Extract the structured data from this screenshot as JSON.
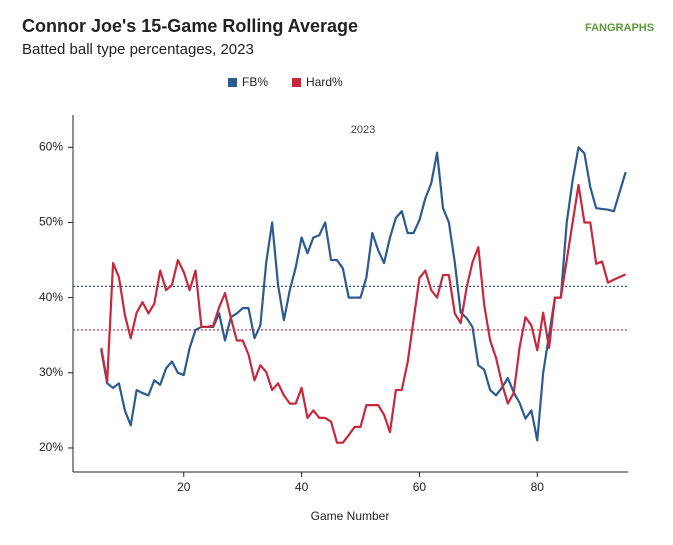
{
  "chart_data": {
    "type": "line",
    "title": "Connor Joe's 15-Game Rolling Average",
    "subtitle": "Batted ball type percentages, 2023",
    "logo": "FANGRAPHS",
    "annotation": "2023",
    "x_label": "Game Number",
    "x": [
      6,
      7,
      8,
      9,
      10,
      11,
      12,
      13,
      14,
      15,
      16,
      17,
      18,
      19,
      20,
      21,
      22,
      23,
      24,
      25,
      26,
      27,
      28,
      29,
      30,
      31,
      32,
      33,
      34,
      35,
      36,
      37,
      38,
      39,
      40,
      41,
      42,
      43,
      44,
      45,
      46,
      47,
      48,
      49,
      50,
      51,
      52,
      53,
      54,
      55,
      56,
      57,
      58,
      59,
      60,
      61,
      62,
      63,
      64,
      65,
      66,
      67,
      68,
      69,
      70,
      71,
      72,
      73,
      74,
      75,
      76,
      77,
      78,
      79,
      80,
      81,
      82,
      83,
      84,
      85,
      86,
      87,
      88,
      89,
      90,
      91,
      92,
      93,
      95
    ],
    "series": [
      {
        "name": "FB%",
        "color": "#2b5b8f",
        "values": [
          33.0,
          28.6,
          28.0,
          28.6,
          25,
          23,
          27.7,
          27.3,
          27,
          29,
          28.4,
          30.6,
          31.5,
          30,
          29.7,
          33.3,
          35.7,
          36.1,
          36.1,
          36.1,
          37.9,
          34.3,
          37.4,
          37.9,
          38.6,
          38.6,
          34.6,
          36.3,
          44.7,
          50,
          41.7,
          37,
          41,
          44,
          48,
          45.9,
          48,
          48.3,
          50,
          45,
          45,
          43.9,
          40,
          40,
          40,
          42.7,
          48.6,
          46.3,
          44.6,
          48,
          50.6,
          51.5,
          48.6,
          48.6,
          50.3,
          53.2,
          55.2,
          59.3,
          51.9,
          50,
          44.7,
          38,
          37.3,
          36.1,
          31,
          30.4,
          27.7,
          27,
          28,
          29.3,
          27.4,
          26,
          23.9,
          25,
          21,
          30,
          35,
          40,
          40,
          50,
          55.6,
          60,
          59.2,
          54.7,
          51.9,
          51.8,
          51.7,
          51.5,
          56.7
        ]
      },
      {
        "name": "Hard%",
        "color": "#c8283c",
        "values": [
          33.3,
          28.8,
          44.6,
          42.7,
          37.7,
          34.6,
          38,
          39.4,
          37.9,
          39.2,
          43.6,
          41,
          41.7,
          45,
          43.4,
          41,
          43.6,
          36.1,
          36.1,
          36.3,
          38.7,
          40.6,
          37.3,
          34.3,
          34.3,
          32.4,
          29,
          31,
          30.1,
          27.7,
          28.6,
          27,
          25.9,
          25.9,
          28,
          24,
          25,
          24,
          24,
          23.5,
          20.7,
          20.7,
          21.7,
          22.8,
          22.8,
          25.7,
          25.7,
          25.7,
          24.4,
          22.1,
          27.7,
          27.7,
          31.4,
          37,
          42.6,
          43.6,
          41,
          40,
          43,
          43,
          37.9,
          36.6,
          41.3,
          44.7,
          46.7,
          39,
          34.3,
          32,
          28.6,
          25.9,
          27.3,
          33.4,
          37.4,
          36.3,
          33,
          38,
          33.3,
          40,
          40,
          45,
          50,
          55,
          50,
          50,
          44.5,
          44.8,
          42,
          42.4,
          43.1
        ]
      }
    ],
    "reference_lines": [
      {
        "value": 41.5,
        "color": "#2b5b8f"
      },
      {
        "value": 35.7,
        "color": "#c8283c"
      }
    ],
    "xlim": [
      1.2,
      95.4
    ],
    "xticks": [
      20,
      40,
      60,
      80
    ],
    "ylim": [
      16.8,
      64.3
    ],
    "yticks": [
      {
        "value": 20,
        "label": "20%"
      },
      {
        "value": 30,
        "label": "30%"
      },
      {
        "value": 40,
        "label": "40%"
      },
      {
        "value": 50,
        "label": "50%"
      },
      {
        "value": 60,
        "label": "60%"
      }
    ],
    "legend": "top"
  }
}
